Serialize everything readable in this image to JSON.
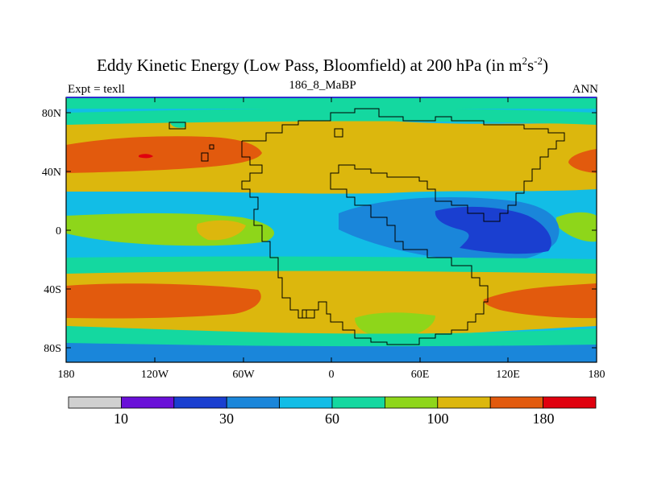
{
  "title": {
    "main": "Eddy Kinetic Energy (Low Pass, Bloomfield) at 200 hPa (in m",
    "sup1": "2",
    "mid": "s",
    "sup2": "-2",
    "close": ")"
  },
  "subtitle": {
    "left": "Expt = texll",
    "center": "186_8_MaBP",
    "right": "ANN"
  },
  "axes": {
    "lat_labels": [
      "80N",
      "40N",
      "0",
      "40S",
      "80S"
    ],
    "lon_labels": [
      "180",
      "120W",
      "60W",
      "0",
      "60E",
      "120E",
      "180"
    ]
  },
  "colorbar": {
    "colors": [
      "#d0d0d0",
      "#6a10d8",
      "#1a3fd0",
      "#1a86da",
      "#12bde6",
      "#14d8a0",
      "#8ed61a",
      "#dcb70d",
      "#e25a0d",
      "#e0000e"
    ],
    "labels": [
      "10",
      "30",
      "60",
      "100",
      "180"
    ]
  }
}
